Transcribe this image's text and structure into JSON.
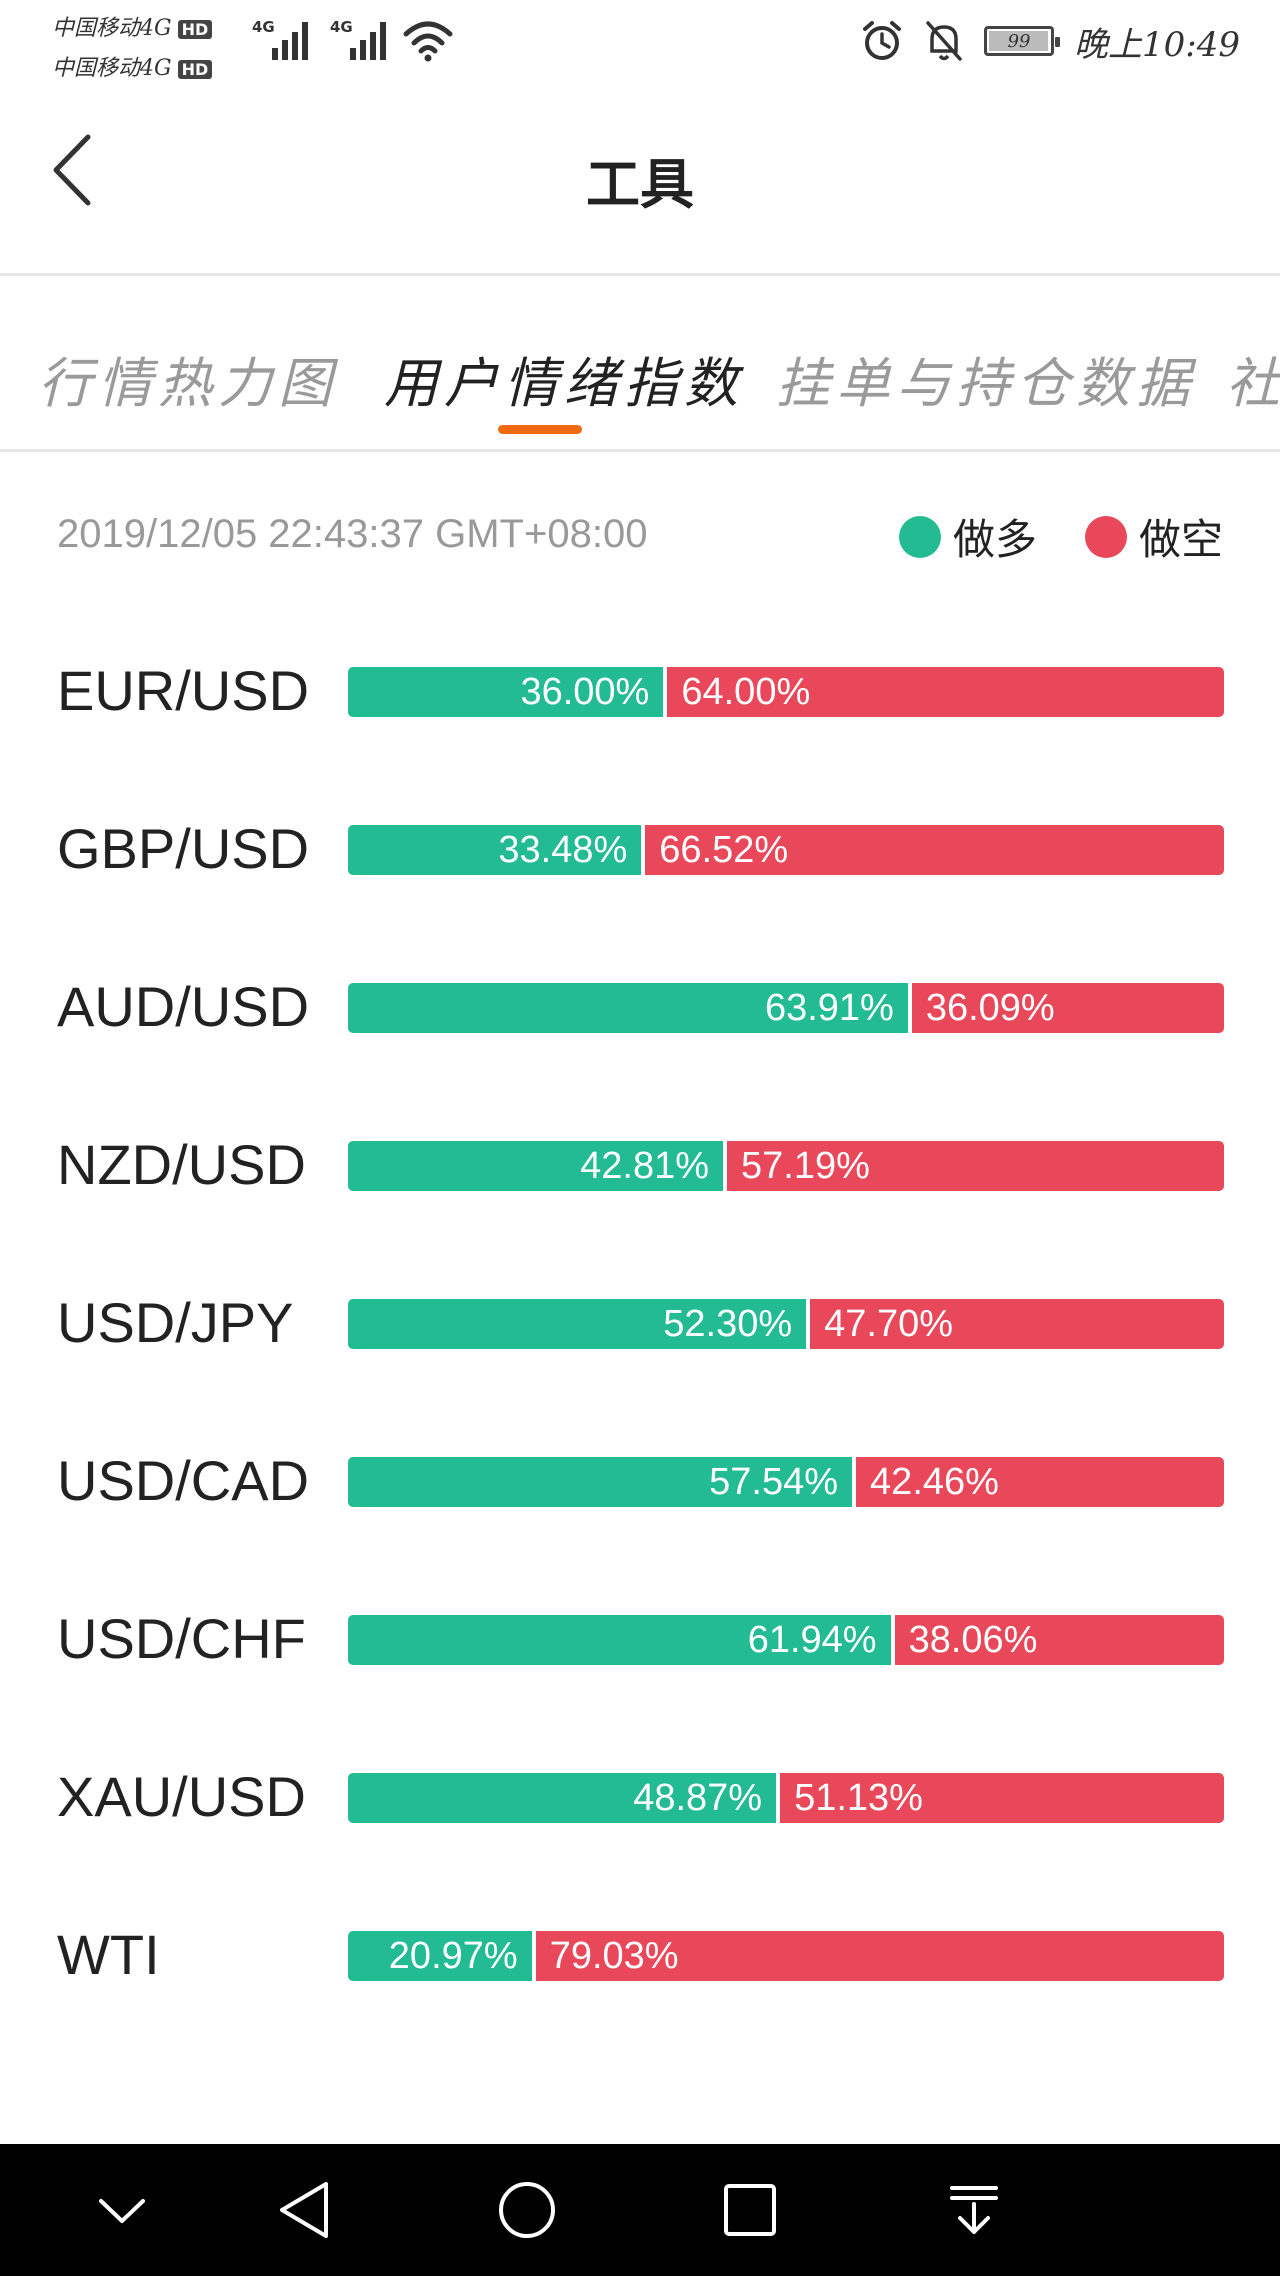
{
  "status_bar": {
    "carrier_line1": "中国移动4G",
    "carrier_line2": "中国移动4G",
    "hd_badge": "HD",
    "network_1": "4G",
    "network_2": "4G",
    "battery": "99",
    "battery_level": 0.99,
    "time": "晚上10:49"
  },
  "header": {
    "title": "工具"
  },
  "tabs": [
    {
      "label": "行情热力图"
    },
    {
      "label": "用户情绪指数"
    },
    {
      "label": "挂单与持仓数据"
    },
    {
      "label": "社"
    }
  ],
  "active_tab": 1,
  "timestamp": "2019/12/05 22:43:37 GMT+08:00",
  "legend": {
    "long_label": "做多",
    "short_label": "做空"
  },
  "colors": {
    "long": "#22bb94",
    "short": "#e8485a",
    "accent": "#f26a10"
  },
  "rows": [
    {
      "pair": "EUR/USD",
      "long_text": "36.00%",
      "short_text": "64.00%",
      "long_pct": 36.0
    },
    {
      "pair": "GBP/USD",
      "long_text": "33.48%",
      "short_text": "66.52%",
      "long_pct": 33.48
    },
    {
      "pair": "AUD/USD",
      "long_text": "63.91%",
      "short_text": "36.09%",
      "long_pct": 63.91
    },
    {
      "pair": "NZD/USD",
      "long_text": "42.81%",
      "short_text": "57.19%",
      "long_pct": 42.81
    },
    {
      "pair": "USD/JPY",
      "long_text": "52.30%",
      "short_text": "47.70%",
      "long_pct": 52.3
    },
    {
      "pair": "USD/CAD",
      "long_text": "57.54%",
      "short_text": "42.46%",
      "long_pct": 57.54
    },
    {
      "pair": "USD/CHF",
      "long_text": "61.94%",
      "short_text": "38.06%",
      "long_pct": 61.94
    },
    {
      "pair": "XAU/USD",
      "long_text": "48.87%",
      "short_text": "51.13%",
      "long_pct": 48.87
    },
    {
      "pair": "WTI",
      "long_text": "20.97%",
      "short_text": "79.03%",
      "long_pct": 20.97
    }
  ],
  "nav_bar": {
    "icons": [
      "chevron-down-icon",
      "back-triangle-icon",
      "home-circle-icon",
      "recents-square-icon",
      "notification-pull-icon"
    ]
  }
}
